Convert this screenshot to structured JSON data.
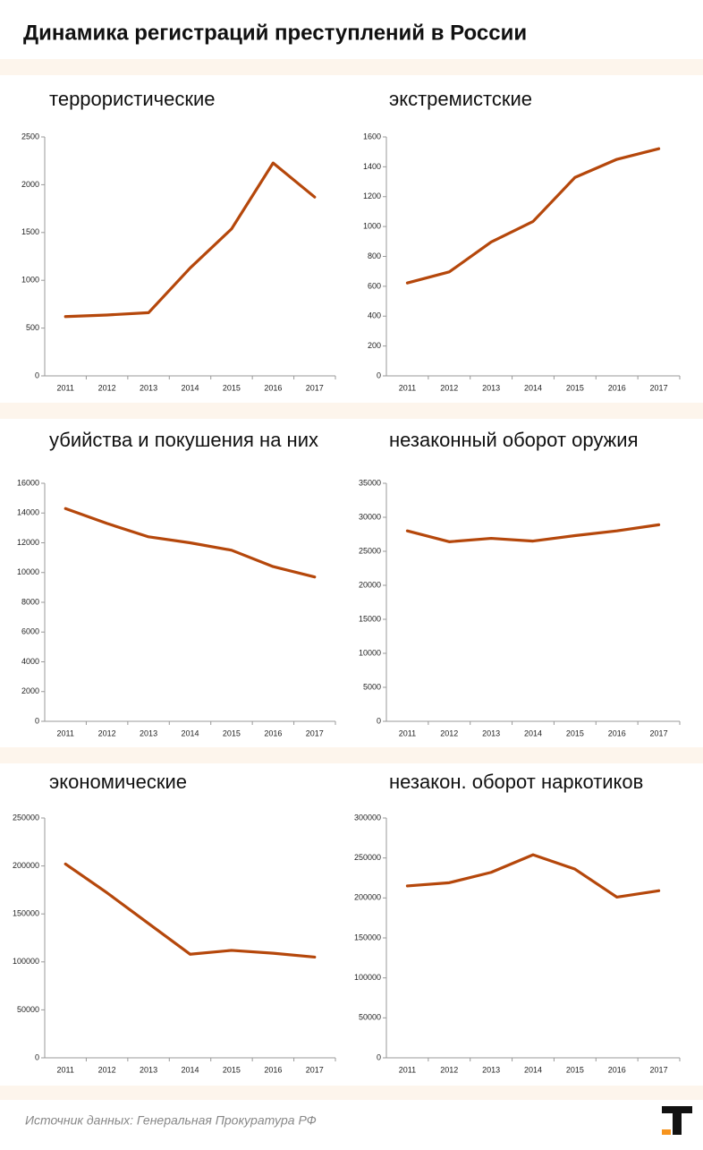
{
  "title": "Динамика регистраций преступлений в России",
  "source": "Источник данных: Генеральная Прокуратура РФ",
  "chart_data": [
    {
      "type": "line",
      "title": "террористические",
      "categories": [
        "2011",
        "2012",
        "2013",
        "2014",
        "2015",
        "2016",
        "2017"
      ],
      "values": [
        620,
        637,
        661,
        1128,
        1538,
        2227,
        1871
      ],
      "color": "#b5470b",
      "ylim": [
        0,
        2500
      ],
      "yticks": [
        0,
        500,
        1000,
        1500,
        2000,
        2500
      ]
    },
    {
      "type": "line",
      "title": "экстремистские",
      "categories": [
        "2011",
        "2012",
        "2013",
        "2014",
        "2015",
        "2016",
        "2017"
      ],
      "values": [
        622,
        696,
        896,
        1034,
        1329,
        1450,
        1521
      ],
      "color": "#b5470b",
      "ylim": [
        0,
        1600
      ],
      "yticks": [
        0,
        200,
        400,
        600,
        800,
        1000,
        1200,
        1400,
        1600
      ]
    },
    {
      "type": "line",
      "title": "убийства и покушения на них",
      "categories": [
        "2011",
        "2012",
        "2013",
        "2014",
        "2015",
        "2016",
        "2017"
      ],
      "values": [
        14300,
        13300,
        12400,
        12000,
        11500,
        10400,
        9700
      ],
      "color": "#b5470b",
      "ylim": [
        0,
        16000
      ],
      "yticks": [
        0,
        2000,
        4000,
        6000,
        8000,
        10000,
        12000,
        14000,
        16000
      ]
    },
    {
      "type": "line",
      "title": "незаконный оборот оружия",
      "categories": [
        "2011",
        "2012",
        "2013",
        "2014",
        "2015",
        "2016",
        "2017"
      ],
      "values": [
        28000,
        26400,
        26900,
        26500,
        27300,
        28000,
        28900
      ],
      "color": "#b5470b",
      "ylim": [
        0,
        35000
      ],
      "yticks": [
        0,
        5000,
        10000,
        15000,
        20000,
        25000,
        30000,
        35000
      ]
    },
    {
      "type": "line",
      "title": "экономические",
      "categories": [
        "2011",
        "2012",
        "2013",
        "2014",
        "2015",
        "2016",
        "2017"
      ],
      "values": [
        202000,
        172000,
        140000,
        108000,
        112000,
        109000,
        105000
      ],
      "color": "#b5470b",
      "ylim": [
        0,
        250000
      ],
      "yticks": [
        0,
        50000,
        100000,
        150000,
        200000,
        250000
      ]
    },
    {
      "type": "line",
      "title": "незакон. оборот наркотиков",
      "categories": [
        "2011",
        "2012",
        "2013",
        "2014",
        "2015",
        "2016",
        "2017"
      ],
      "values": [
        215000,
        219000,
        232000,
        254000,
        236000,
        201000,
        209000
      ],
      "color": "#b5470b",
      "ylim": [
        0,
        300000
      ],
      "yticks": [
        0,
        50000,
        100000,
        150000,
        200000,
        250000,
        300000
      ]
    }
  ]
}
